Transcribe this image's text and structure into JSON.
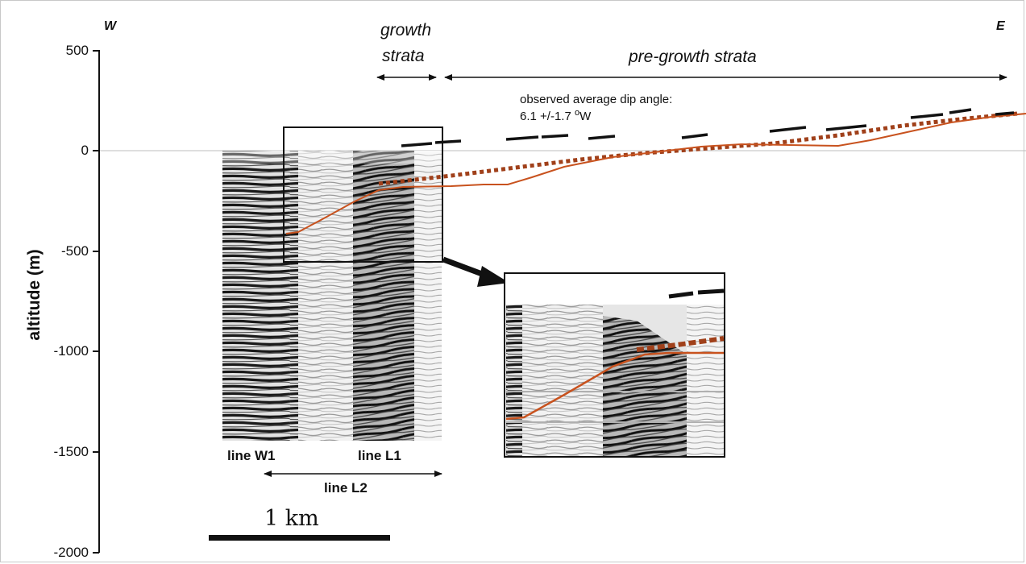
{
  "compass": {
    "west": "W",
    "east": "E"
  },
  "y_axis": {
    "label": "altitude (m)",
    "ticks": [
      "500",
      "0",
      "-500",
      "-1000",
      "-1500",
      "-2000"
    ]
  },
  "annotations": {
    "growth_line1": "growth",
    "growth_line2": "strata",
    "pregrowth": "pre-growth strata",
    "dip_line1": "observed average dip angle:",
    "dip_value": "6.1 +/-1.7 ",
    "dip_degree": "o",
    "dip_direction": "W"
  },
  "seismic_lines": {
    "w1": "line W1",
    "l1": "line L1",
    "l2": "line L2"
  },
  "scale_bar": {
    "label": "1 km"
  },
  "colors": {
    "surface": "#c8521e",
    "projected": "#a0401a",
    "bedding": "#111111",
    "axis": "#111111"
  }
}
